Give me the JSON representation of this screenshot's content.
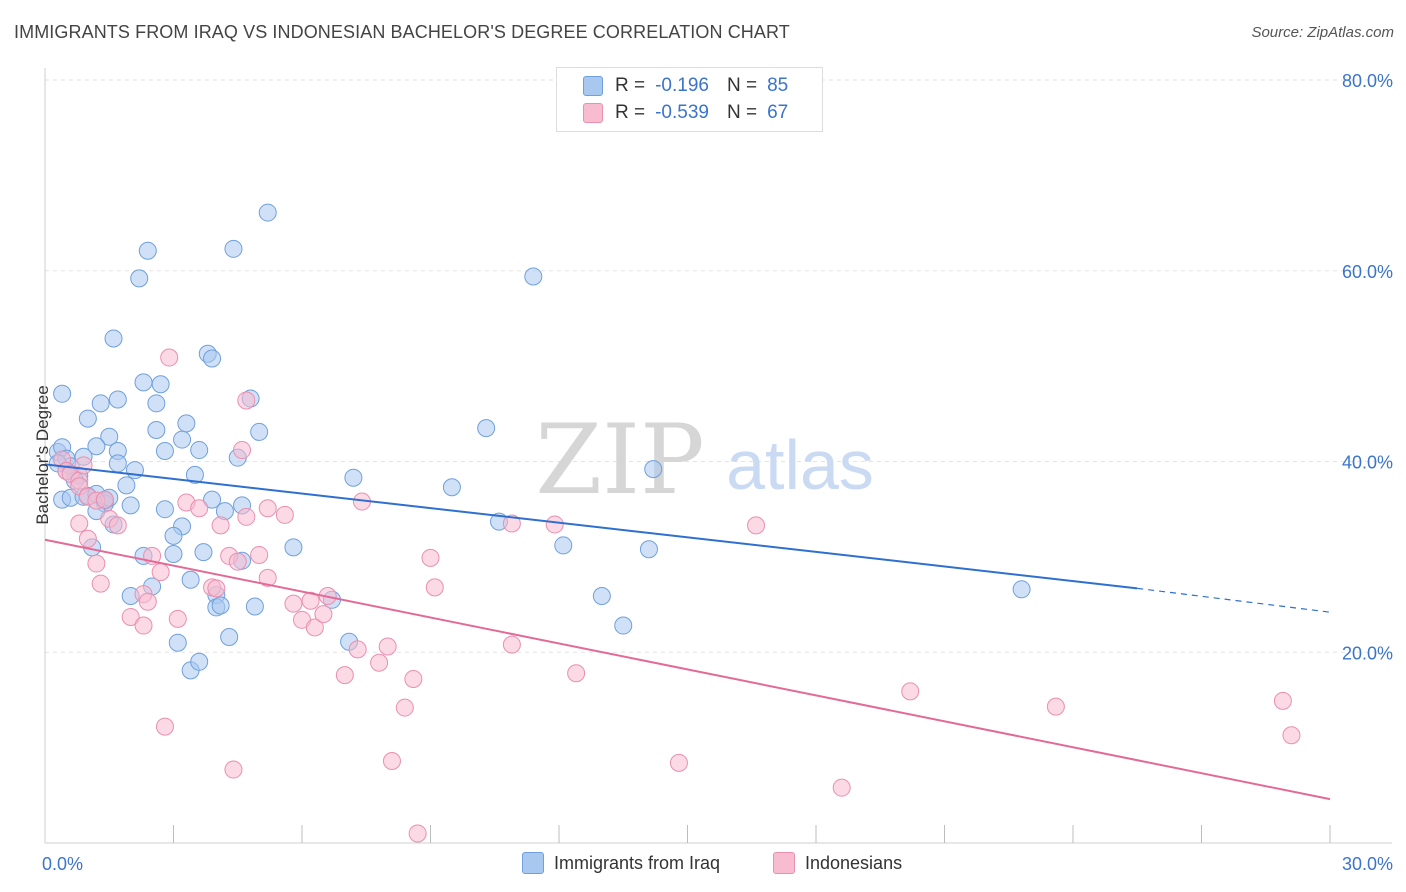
{
  "title": "IMMIGRANTS FROM IRAQ VS INDONESIAN BACHELOR'S DEGREE CORRELATION CHART",
  "source": "Source: ZipAtlas.com",
  "watermark": {
    "zip": "ZIP",
    "atlas": "atlas"
  },
  "legend_top": [
    {
      "r_label": "R =",
      "r_value": "-0.196",
      "n_label": "N =",
      "n_value": "85"
    },
    {
      "r_label": "R =",
      "r_value": "-0.539",
      "n_label": "N =",
      "n_value": "67"
    }
  ],
  "legend_bottom": [
    {
      "label": "Immigrants from Iraq"
    },
    {
      "label": "Indonesians"
    }
  ],
  "colors": {
    "blue_fill": "#a9c8f0",
    "blue_stroke": "#6fa0dc",
    "blue_line": "#2f6fd0",
    "pink_fill": "#f7bcd0",
    "pink_stroke": "#ea8fb0",
    "pink_line": "#e36a96",
    "axis_text": "#3b74cc",
    "grid": "#e3e3e3"
  },
  "chart_data": {
    "type": "scatter",
    "title": "IMMIGRANTS FROM IRAQ VS INDONESIAN BACHELOR'S DEGREE CORRELATION CHART",
    "xlabel": "",
    "ylabel": "Bachelor's Degree",
    "xlim": [
      0,
      30
    ],
    "ylim": [
      0,
      80
    ],
    "x_tick_labels": [
      "0.0%",
      "30.0%"
    ],
    "y_ticks": [
      20,
      40,
      60,
      80
    ],
    "y_tick_labels": [
      "20.0%",
      "40.0%",
      "60.0%",
      "80.0%"
    ],
    "grid": true,
    "series": [
      {
        "name": "Immigrants from Iraq",
        "r": -0.196,
        "n": 85,
        "trend": {
          "x0": 0.0,
          "y0": 39.7,
          "x1": 25.5,
          "y1": 26.7,
          "dash_to_x": 30.0,
          "dash_to_y": 24.2
        },
        "points": [
          [
            0.3,
            41.0
          ],
          [
            0.4,
            41.5
          ],
          [
            0.5,
            40.3
          ],
          [
            0.6,
            39.5
          ],
          [
            0.3,
            39.8
          ],
          [
            0.8,
            38.5
          ],
          [
            0.7,
            38.0
          ],
          [
            0.4,
            36.0
          ],
          [
            0.6,
            36.2
          ],
          [
            0.9,
            36.3
          ],
          [
            1.0,
            36.4
          ],
          [
            1.2,
            36.6
          ],
          [
            1.4,
            35.9
          ],
          [
            1.4,
            35.6
          ],
          [
            1.5,
            36.2
          ],
          [
            1.2,
            34.8
          ],
          [
            2.0,
            35.4
          ],
          [
            1.6,
            33.4
          ],
          [
            1.1,
            31.0
          ],
          [
            2.3,
            30.1
          ],
          [
            2.5,
            26.9
          ],
          [
            2.0,
            25.9
          ],
          [
            3.1,
            21.0
          ],
          [
            3.4,
            18.1
          ],
          [
            3.6,
            19.0
          ],
          [
            0.4,
            47.1
          ],
          [
            1.0,
            44.5
          ],
          [
            1.3,
            46.1
          ],
          [
            1.7,
            46.5
          ],
          [
            1.5,
            42.6
          ],
          [
            1.2,
            41.6
          ],
          [
            1.7,
            41.1
          ],
          [
            1.7,
            39.8
          ],
          [
            2.1,
            39.1
          ],
          [
            2.3,
            48.3
          ],
          [
            2.6,
            46.1
          ],
          [
            2.7,
            48.1
          ],
          [
            2.6,
            43.3
          ],
          [
            2.8,
            41.1
          ],
          [
            3.2,
            42.3
          ],
          [
            3.3,
            44.0
          ],
          [
            3.5,
            38.6
          ],
          [
            3.6,
            41.2
          ],
          [
            1.6,
            52.9
          ],
          [
            2.2,
            59.2
          ],
          [
            2.4,
            62.1
          ],
          [
            3.8,
            51.3
          ],
          [
            3.9,
            50.8
          ],
          [
            3.9,
            36.0
          ],
          [
            4.2,
            34.8
          ],
          [
            4.6,
            35.4
          ],
          [
            4.6,
            29.6
          ],
          [
            4.9,
            24.8
          ],
          [
            5.0,
            43.1
          ],
          [
            5.2,
            66.1
          ],
          [
            4.4,
            62.3
          ],
          [
            4.8,
            46.6
          ],
          [
            4.5,
            40.4
          ],
          [
            3.2,
            33.2
          ],
          [
            3.0,
            32.2
          ],
          [
            3.0,
            30.3
          ],
          [
            3.4,
            27.6
          ],
          [
            4.0,
            26.0
          ],
          [
            4.0,
            24.7
          ],
          [
            4.1,
            24.9
          ],
          [
            4.3,
            21.6
          ],
          [
            5.8,
            31.0
          ],
          [
            6.7,
            25.5
          ],
          [
            7.1,
            21.1
          ],
          [
            7.2,
            38.3
          ],
          [
            9.5,
            37.3
          ],
          [
            10.3,
            43.5
          ],
          [
            10.6,
            33.7
          ],
          [
            11.4,
            59.4
          ],
          [
            12.1,
            31.2
          ],
          [
            13.0,
            25.9
          ],
          [
            13.5,
            22.8
          ],
          [
            14.1,
            30.8
          ],
          [
            14.2,
            39.2
          ],
          [
            22.8,
            26.6
          ],
          [
            0.5,
            39.0
          ],
          [
            0.9,
            40.5
          ],
          [
            2.8,
            35.0
          ],
          [
            1.9,
            37.5
          ],
          [
            3.7,
            30.5
          ]
        ]
      },
      {
        "name": "Indonesians",
        "r": -0.539,
        "n": 67,
        "trend": {
          "x0": 0.0,
          "y0": 31.8,
          "x1": 30.0,
          "y1": 4.6
        },
        "points": [
          [
            0.4,
            40.2
          ],
          [
            0.5,
            39.0
          ],
          [
            0.6,
            38.7
          ],
          [
            0.8,
            38.0
          ],
          [
            0.9,
            39.6
          ],
          [
            0.8,
            37.4
          ],
          [
            1.0,
            36.3
          ],
          [
            1.2,
            35.9
          ],
          [
            1.4,
            36.0
          ],
          [
            1.5,
            34.0
          ],
          [
            1.7,
            33.3
          ],
          [
            0.8,
            33.5
          ],
          [
            1.0,
            31.9
          ],
          [
            1.2,
            29.3
          ],
          [
            2.5,
            30.1
          ],
          [
            2.7,
            28.4
          ],
          [
            1.3,
            27.2
          ],
          [
            2.3,
            26.1
          ],
          [
            2.4,
            25.3
          ],
          [
            2.0,
            23.7
          ],
          [
            2.3,
            22.8
          ],
          [
            3.1,
            23.5
          ],
          [
            2.9,
            50.9
          ],
          [
            3.9,
            26.8
          ],
          [
            4.0,
            26.7
          ],
          [
            4.3,
            30.1
          ],
          [
            4.5,
            29.5
          ],
          [
            3.3,
            35.7
          ],
          [
            3.6,
            35.1
          ],
          [
            4.1,
            33.3
          ],
          [
            4.7,
            34.2
          ],
          [
            5.0,
            30.2
          ],
          [
            5.2,
            27.8
          ],
          [
            4.6,
            41.2
          ],
          [
            4.7,
            46.4
          ],
          [
            5.2,
            35.1
          ],
          [
            5.6,
            34.4
          ],
          [
            5.8,
            25.1
          ],
          [
            6.0,
            23.4
          ],
          [
            6.2,
            25.4
          ],
          [
            6.3,
            22.6
          ],
          [
            6.6,
            25.9
          ],
          [
            6.5,
            24.0
          ],
          [
            7.0,
            17.6
          ],
          [
            7.3,
            20.3
          ],
          [
            7.4,
            35.8
          ],
          [
            7.8,
            18.9
          ],
          [
            8.0,
            20.6
          ],
          [
            8.1,
            8.6
          ],
          [
            8.4,
            14.2
          ],
          [
            8.6,
            17.2
          ],
          [
            9.0,
            29.9
          ],
          [
            9.1,
            26.8
          ],
          [
            10.9,
            20.8
          ],
          [
            10.9,
            33.5
          ],
          [
            11.9,
            33.4
          ],
          [
            12.4,
            17.8
          ],
          [
            14.8,
            8.4
          ],
          [
            16.6,
            33.3
          ],
          [
            18.6,
            5.8
          ],
          [
            20.2,
            15.9
          ],
          [
            23.6,
            14.3
          ],
          [
            28.9,
            14.9
          ],
          [
            29.1,
            11.3
          ],
          [
            8.7,
            1.0
          ],
          [
            2.8,
            12.2
          ],
          [
            4.4,
            7.7
          ]
        ]
      }
    ]
  }
}
